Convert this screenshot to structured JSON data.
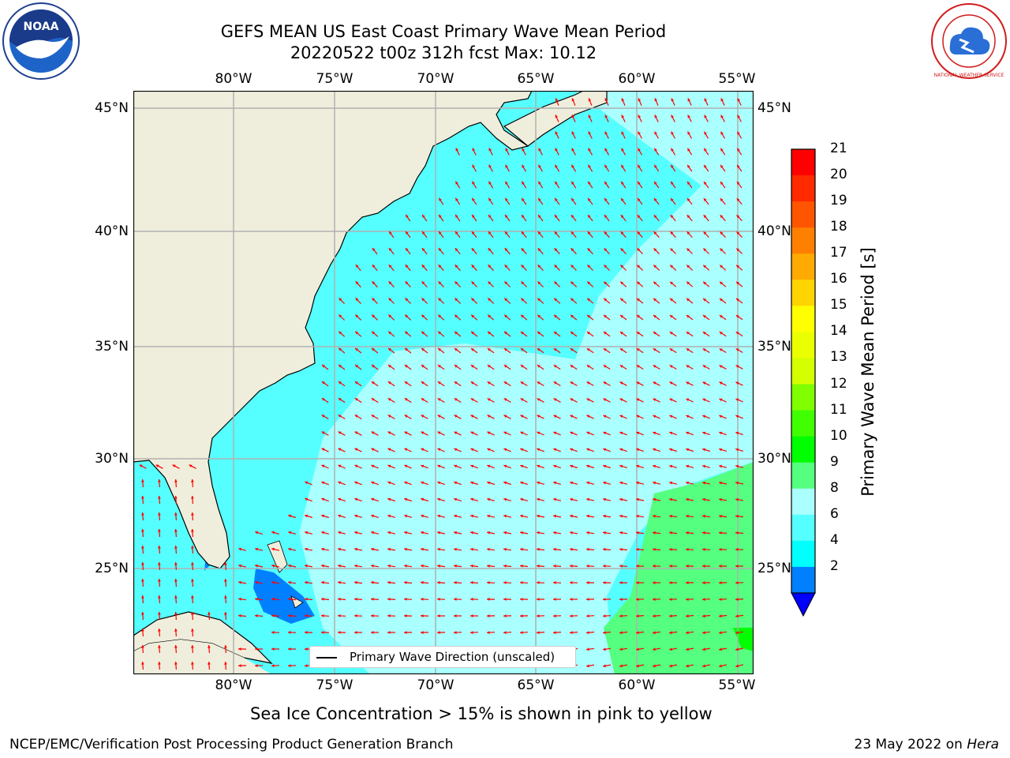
{
  "header": {
    "title_line1": "GEFS MEAN US East Coast Primary Wave Mean Period",
    "title_line2": "20220522 t00z 312h fcst   Max: 10.12"
  },
  "logos": {
    "noaa_text": "NOAA",
    "nws_text": "NATIONAL WEATHER SERVICE"
  },
  "map": {
    "lon_ticks": [
      "80°W",
      "75°W",
      "70°W",
      "65°W",
      "60°W",
      "55°W"
    ],
    "lat_ticks": [
      "45°N",
      "40°N",
      "35°N",
      "30°N",
      "25°N"
    ],
    "legend_label": "Primary Wave Direction (unscaled)",
    "arrow_color": "#ff0000",
    "land_color": "#efeedc"
  },
  "colorbar": {
    "title": "Primary Wave Mean Period [s]",
    "labels": [
      "21",
      "20",
      "19",
      "18",
      "17",
      "16",
      "15",
      "14",
      "13",
      "12",
      "11",
      "10",
      "9",
      "8",
      "6",
      "4",
      "2"
    ],
    "colors_top_to_bottom": [
      "#ff0000",
      "#ff2a00",
      "#ff5500",
      "#ff7f00",
      "#ffaa00",
      "#ffd400",
      "#ffff00",
      "#eaff00",
      "#d4ff00",
      "#7fff00",
      "#40ff00",
      "#00ff00",
      "#55ff7f",
      "#aaffff",
      "#55ffff",
      "#00ffff",
      "#0080ff"
    ],
    "extend_color": "#0000ff"
  },
  "footer": {
    "ice_note": "Sea Ice Concentration > 15% is shown in pink to yellow",
    "org": "NCEP/EMC/Verification Post Processing Product Generation Branch",
    "date_prefix": "23 May 2022 on ",
    "machine": "Hera"
  }
}
